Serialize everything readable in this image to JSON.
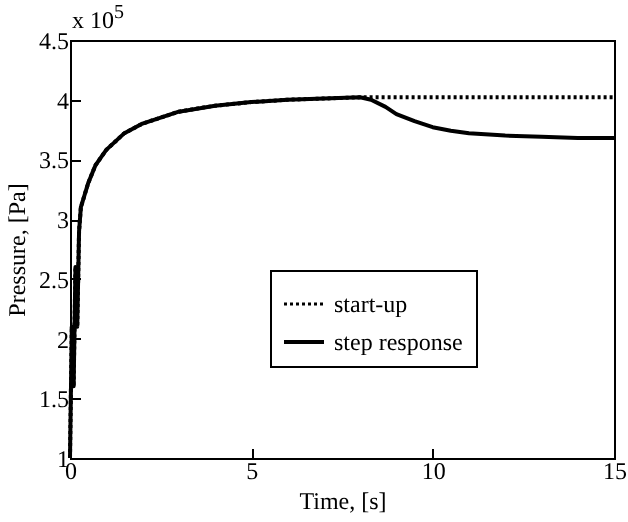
{
  "chart_data": {
    "type": "line",
    "xlabel": "Time, [s]",
    "ylabel": "Pressure, [Pa]",
    "annotations": [
      "x 10$^{5}$"
    ],
    "xlim": [
      0,
      15
    ],
    "xticks": [
      0,
      5,
      10,
      15
    ],
    "ylim": [
      1,
      4.5
    ],
    "yticks": [
      1,
      1.5,
      2,
      2.5,
      3,
      3.5,
      4,
      4.5
    ],
    "grid": false,
    "legend": "center",
    "marker": "none",
    "series": [
      {
        "name": "start-up",
        "color": "#000000",
        "line_style": "dotted",
        "x": [
          0,
          0.05,
          0.1,
          0.15,
          0.2,
          0.25,
          0.3,
          0.4,
          0.5,
          0.7,
          1,
          1.5,
          2,
          3,
          4,
          5,
          6,
          7,
          8,
          9,
          10,
          12,
          15
        ],
        "values": [
          1,
          2.1,
          1.6,
          2.6,
          2.1,
          2.9,
          3.1,
          3.2,
          3.3,
          3.45,
          3.58,
          3.72,
          3.8,
          3.9,
          3.95,
          3.98,
          4,
          4.01,
          4.02,
          4.02,
          4.02,
          4.02,
          4.02
        ]
      },
      {
        "name": "step response",
        "color": "#000000",
        "line_style": "solid",
        "x": [
          0,
          0.05,
          0.1,
          0.15,
          0.2,
          0.25,
          0.3,
          0.4,
          0.5,
          0.7,
          1,
          1.5,
          2,
          3,
          4,
          5,
          6,
          7,
          8,
          8.3,
          8.7,
          9,
          9.5,
          10,
          10.5,
          11,
          12,
          13,
          14,
          15
        ],
        "values": [
          1,
          2.1,
          1.6,
          2.6,
          2.1,
          2.9,
          3.1,
          3.2,
          3.3,
          3.45,
          3.58,
          3.72,
          3.8,
          3.9,
          3.95,
          3.98,
          4,
          4.01,
          4.02,
          4.0,
          3.94,
          3.88,
          3.82,
          3.77,
          3.74,
          3.72,
          3.7,
          3.69,
          3.68,
          3.68
        ]
      }
    ]
  }
}
